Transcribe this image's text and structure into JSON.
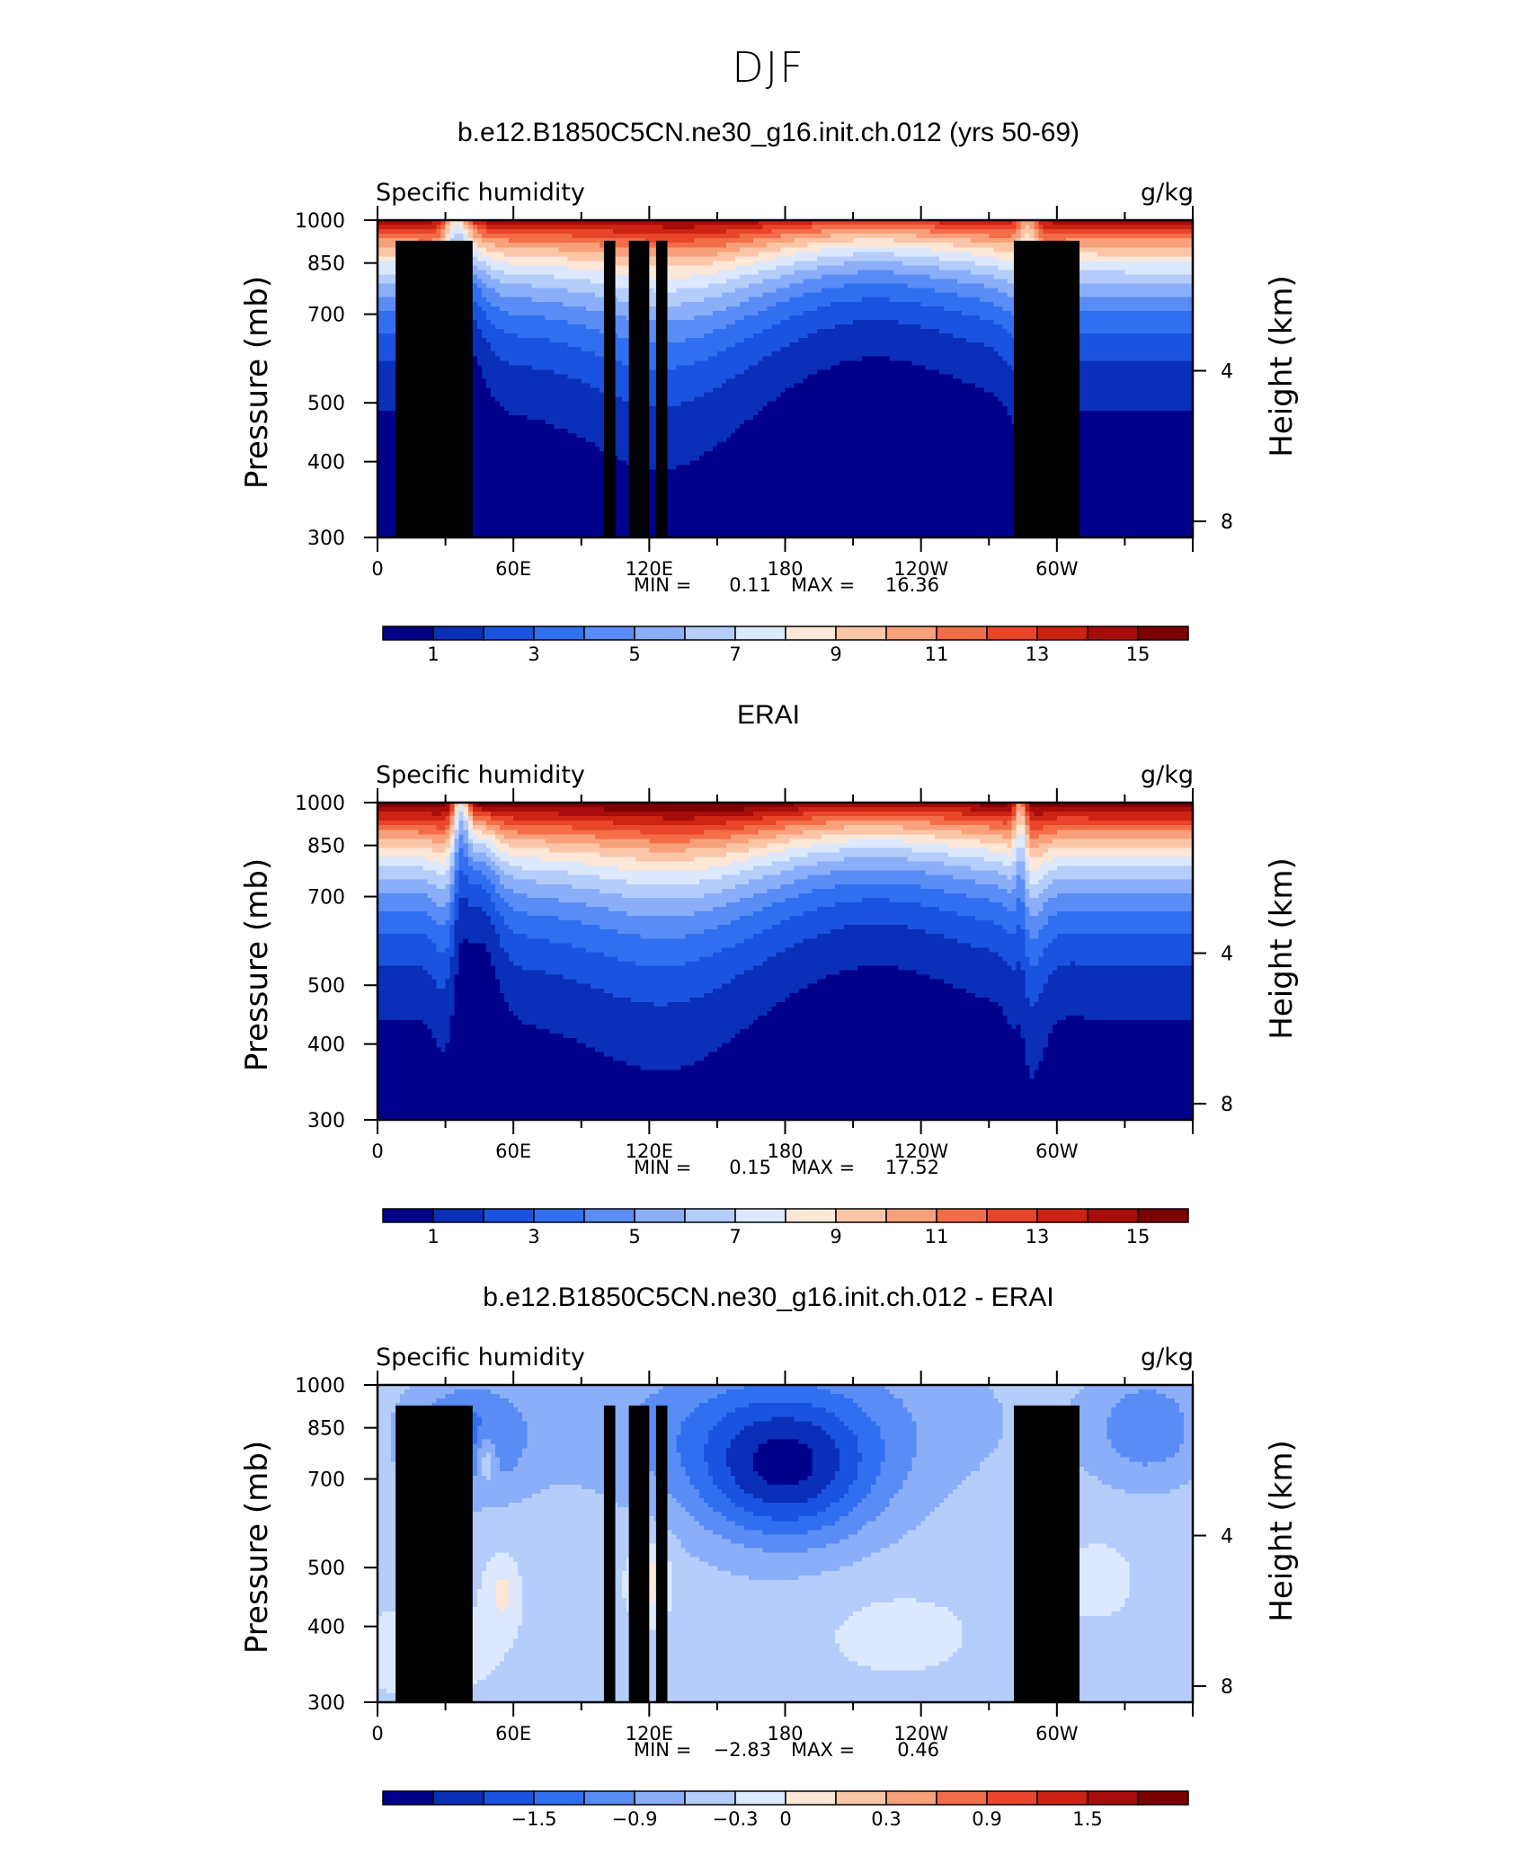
{
  "figure": {
    "title": "DJF"
  },
  "colors": {
    "fill_palette": [
      "#00008b",
      "#0a2fb8",
      "#1a53e0",
      "#3070f0",
      "#5a8cf5",
      "#8aaef8",
      "#b4cdfb",
      "#dbe8fd",
      "#fde7d7",
      "#fbc6a8",
      "#f8a07a",
      "#f36e48",
      "#e8452a",
      "#cc2312",
      "#a70b0a",
      "#7d0000"
    ],
    "topography": "#000000",
    "frame": "#000000"
  },
  "chart_data": [
    {
      "type": "contour",
      "panel_title": "b.e12.B1850C5CN.ne30_g16.init.ch.012 (yrs 50-69)",
      "left_string": "Specific humidity",
      "right_string": "g/kg",
      "xlabel": "",
      "ylabel": "Pressure (mb)",
      "ylabel_right": "Height (km)",
      "x_ticks": [
        "0",
        "60E",
        "120E",
        "180",
        "120W",
        "60W"
      ],
      "x_tick_values": [
        0,
        60,
        120,
        180,
        240,
        300
      ],
      "xlim": [
        0,
        360
      ],
      "y_ticks": [
        300,
        400,
        500,
        700,
        850,
        1000
      ],
      "ylim": [
        1000,
        300
      ],
      "y_scale": "log",
      "height_ticks_km": [
        4,
        8
      ],
      "min_max": {
        "min_label": "MIN =",
        "min": "0.11",
        "max_label": "MAX =",
        "max": "16.36"
      },
      "colorbar": {
        "levels": [
          0,
          1,
          2,
          3,
          4,
          5,
          6,
          7,
          8,
          9,
          10,
          11,
          12,
          13,
          14,
          15,
          16
        ],
        "labels": [
          "1",
          "3",
          "5",
          "7",
          "9",
          "11",
          "13",
          "15"
        ],
        "label_values": [
          1,
          3,
          5,
          7,
          9,
          11,
          13,
          15
        ]
      },
      "topography_blocks": [
        {
          "x0": 8,
          "x1": 42,
          "p_top": 925
        },
        {
          "x0": 28,
          "x1": 39,
          "p_top": 850
        },
        {
          "x0": 100,
          "x1": 105,
          "p_top": 925
        },
        {
          "x0": 111,
          "x1": 120,
          "p_top": 925
        },
        {
          "x0": 123,
          "x1": 128,
          "p_top": 925
        },
        {
          "x0": 281,
          "x1": 310,
          "p_top": 925
        }
      ]
    },
    {
      "type": "contour",
      "panel_title": "ERAI",
      "left_string": "Specific humidity",
      "right_string": "g/kg",
      "xlabel": "",
      "ylabel": "Pressure (mb)",
      "ylabel_right": "Height (km)",
      "x_ticks": [
        "0",
        "60E",
        "120E",
        "180",
        "120W",
        "60W"
      ],
      "x_tick_values": [
        0,
        60,
        120,
        180,
        240,
        300
      ],
      "xlim": [
        0,
        360
      ],
      "y_ticks": [
        300,
        400,
        500,
        700,
        850,
        1000
      ],
      "ylim": [
        1000,
        300
      ],
      "y_scale": "log",
      "height_ticks_km": [
        4,
        8
      ],
      "min_max": {
        "min_label": "MIN =",
        "min": "0.15",
        "max_label": "MAX =",
        "max": "17.52"
      },
      "colorbar": {
        "levels": [
          0,
          1,
          2,
          3,
          4,
          5,
          6,
          7,
          8,
          9,
          10,
          11,
          12,
          13,
          14,
          15,
          16
        ],
        "labels": [
          "1",
          "3",
          "5",
          "7",
          "9",
          "11",
          "13",
          "15"
        ],
        "label_values": [
          1,
          3,
          5,
          7,
          9,
          11,
          13,
          15
        ]
      },
      "topography_blocks": []
    },
    {
      "type": "contour",
      "panel_title": "b.e12.B1850C5CN.ne30_g16.init.ch.012 - ERAI",
      "left_string": "Specific humidity",
      "right_string": "g/kg",
      "xlabel": "",
      "ylabel": "Pressure (mb)",
      "ylabel_right": "Height (km)",
      "x_ticks": [
        "0",
        "60E",
        "120E",
        "180",
        "120W",
        "60W"
      ],
      "x_tick_values": [
        0,
        60,
        120,
        180,
        240,
        300
      ],
      "xlim": [
        0,
        360
      ],
      "y_ticks": [
        300,
        400,
        500,
        700,
        850,
        1000
      ],
      "ylim": [
        1000,
        300
      ],
      "y_scale": "log",
      "height_ticks_km": [
        4,
        8
      ],
      "min_max": {
        "min_label": "MIN =",
        "min": "−2.83",
        "max_label": "MAX =",
        "max": "0.46"
      },
      "colorbar": {
        "levels": [
          -2.4,
          -2.1,
          -1.8,
          -1.5,
          -1.2,
          -0.9,
          -0.6,
          -0.3,
          0,
          0.15,
          0.3,
          0.6,
          0.9,
          1.2,
          1.5,
          1.8,
          2.1
        ],
        "labels": [
          "−1.5",
          "−0.9",
          "−0.3",
          "0",
          "0.3",
          "0.9",
          "1.5"
        ],
        "label_values": [
          -1.5,
          -0.9,
          -0.3,
          0,
          0.3,
          0.9,
          1.5
        ]
      },
      "topography_blocks": [
        {
          "x0": 8,
          "x1": 42,
          "p_top": 925
        },
        {
          "x0": 28,
          "x1": 39,
          "p_top": 850
        },
        {
          "x0": 100,
          "x1": 105,
          "p_top": 925
        },
        {
          "x0": 111,
          "x1": 120,
          "p_top": 925
        },
        {
          "x0": 123,
          "x1": 128,
          "p_top": 925
        },
        {
          "x0": 281,
          "x1": 310,
          "p_top": 925
        }
      ]
    }
  ]
}
